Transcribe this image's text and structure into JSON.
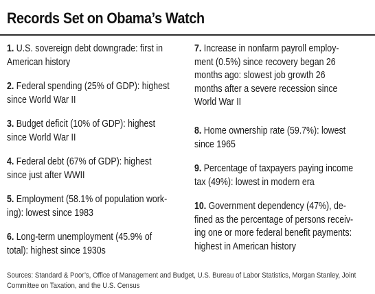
{
  "title": "Records Set on Obama’s Watch",
  "items_left": [
    {
      "num": "1.",
      "lines": [
        "U.S. sovereign debt downgrade: first in",
        "American history"
      ]
    },
    {
      "num": "2.",
      "lines": [
        "Federal spending (25% of GDP): highest",
        "since World War II"
      ]
    },
    {
      "num": "3.",
      "lines": [
        "Budget deficit (10% of GDP): highest",
        "since World War II"
      ]
    },
    {
      "num": "4.",
      "lines": [
        "Federal debt (67% of GDP): highest",
        "since just after WWII"
      ]
    },
    {
      "num": "5.",
      "lines": [
        "Employment (58.1% of population work-",
        "ing): lowest since 1983"
      ]
    },
    {
      "num": "6.",
      "lines": [
        "Long-term unemployment (45.9% of",
        "total): highest since 1930s"
      ]
    }
  ],
  "items_right": [
    {
      "num": "7.",
      "lines": [
        "Increase in nonfarm payroll employ-",
        "ment (0.5%) since recovery began 26",
        "months ago: slowest job growth 26",
        "months after a severe recession since",
        "World War II"
      ]
    },
    {
      "num": "8.",
      "lines": [
        "Home ownership rate (59.7%): lowest",
        "since 1965"
      ]
    },
    {
      "num": "9.",
      "lines": [
        "Percentage of taxpayers paying income",
        "tax (49%): lowest in modern era"
      ]
    },
    {
      "num": "10.",
      "lines": [
        "Government dependency (47%), de-",
        "fined as the percentage of persons receiv-",
        "ing one or more federal benefit payments:",
        "highest in American history"
      ]
    }
  ],
  "sources": {
    "line1": "Sources: Standard & Poor’s, Office of Management and Budget, U.S. Bureau of Labor Statistics, Morgan Stanley, Joint",
    "line2": "Committee on Taxation, and the U.S. Census"
  }
}
